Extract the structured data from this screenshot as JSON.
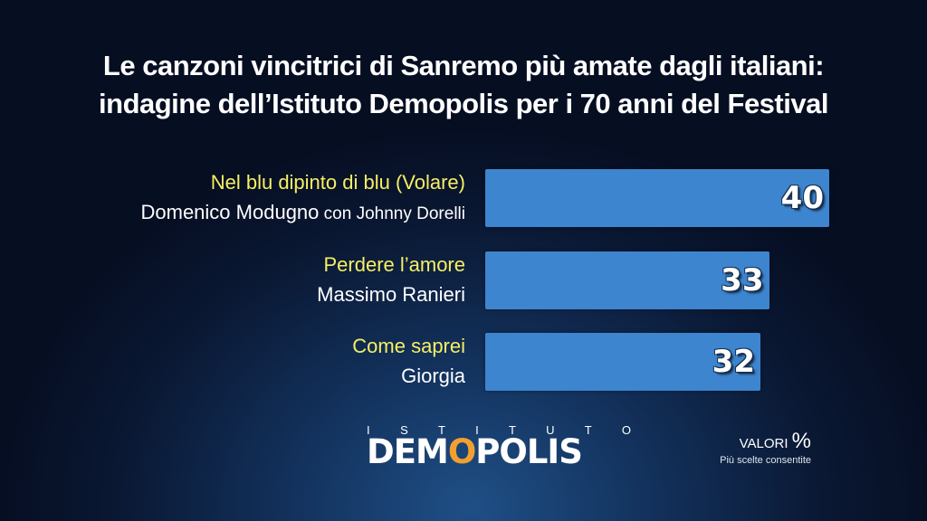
{
  "title": {
    "line1": "Le canzoni vincitrici di Sanremo più amate dagli italiani:",
    "line2": "indagine dell’Istituto Demopolis per i 70 anni del Festival"
  },
  "chart_data": {
    "type": "bar",
    "orientation": "horizontal",
    "title": "Le canzoni vincitrici di Sanremo più amate dagli italiani: indagine dell’Istituto Demopolis per i 70 anni del Festival",
    "categories": [
      {
        "song": "Nel blu dipinto di blu (Volare)",
        "artist": "Domenico Modugno",
        "artist_extra": "con Johnny Dorelli"
      },
      {
        "song": "Perdere l’amore",
        "artist": "Massimo Ranieri",
        "artist_extra": ""
      },
      {
        "song": "Come saprei",
        "artist": "Giorgia",
        "artist_extra": ""
      }
    ],
    "values": [
      40,
      33,
      32
    ],
    "xlim": [
      0,
      40
    ],
    "unit": "%",
    "bar_color": "#3d85cf",
    "song_label_color": "#f6ef64",
    "grid": false,
    "legend": "none"
  },
  "logo": {
    "top": "ISTITUTO",
    "main_pre": "DEM",
    "main_o": "O",
    "main_post": "POLIS"
  },
  "note": {
    "valori": "VALORI",
    "pct": "%",
    "sub": "Più scelte consentite"
  }
}
